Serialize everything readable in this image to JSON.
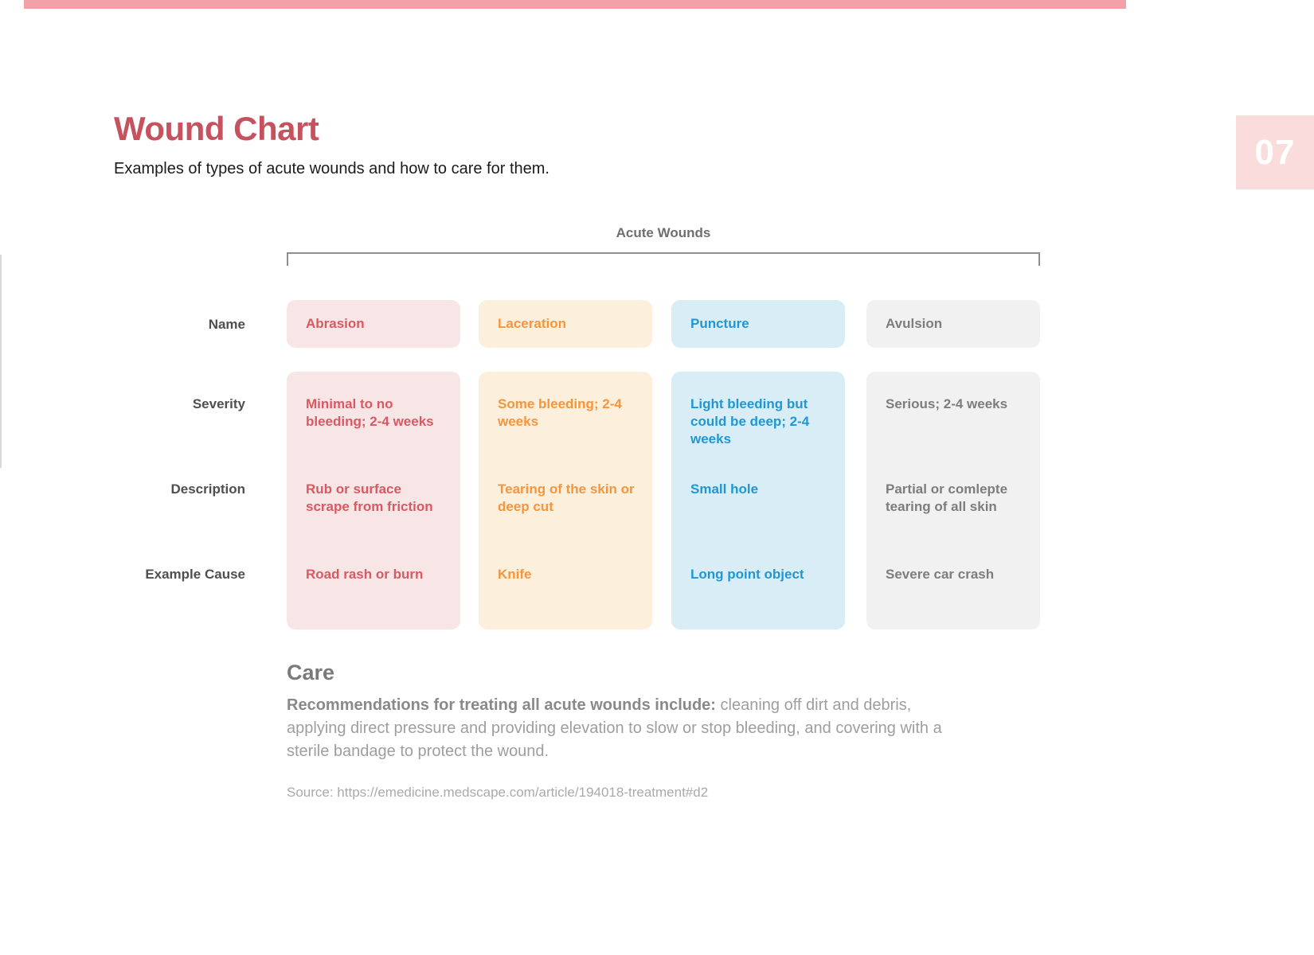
{
  "page": {
    "title": "Wound Chart",
    "subtitle": "Examples of types of acute wounds and how to care for them.",
    "page_number": "07"
  },
  "table": {
    "group_label": "Acute Wounds",
    "row_labels": {
      "name": "Name",
      "severity": "Severity",
      "description": "Description",
      "example_cause": "Example Cause"
    },
    "columns": [
      {
        "name": "Abrasion",
        "severity": "Minimal to no bleeding; 2-4 weeks",
        "description": "Rub or surface scrape from friction",
        "example_cause": "Road rash or burn",
        "text_color": "#d95962",
        "bg_color": "#f8e6e6"
      },
      {
        "name": "Laceration",
        "severity": "Some bleeding; 2-4 weeks",
        "description": "Tearing of the skin or deep cut",
        "example_cause": "Knife",
        "text_color": "#f6953c",
        "bg_color": "#fcefdb"
      },
      {
        "name": "Puncture",
        "severity": "Light bleeding but could be deep; 2-4 weeks",
        "description": "Small hole",
        "example_cause": "Long point object",
        "text_color": "#2097d4",
        "bg_color": "#d8edf6"
      },
      {
        "name": "Avulsion",
        "severity": "Serious; 2-4 weeks",
        "description": "Partial or comlepte tearing of all skin",
        "example_cause": "Severe car crash",
        "text_color": "#7d7d7d",
        "bg_color": "#f1f1f1"
      }
    ]
  },
  "care": {
    "heading": "Care",
    "lead": "Recommendations for treating all acute wounds include:",
    "body": " cleaning off dirt and debris, applying direct pressure and providing elevation to slow or stop bleeding, and covering with a sterile bandage to protect the wound.",
    "source": "Source: https://emedicine.medscape.com/article/194018-treatment#d2"
  },
  "colors": {
    "title_red": "#c5525e",
    "top_bar_pink": "#f2a1a8",
    "badge_pink": "#fadcdc",
    "abrasion_text": "#d95962",
    "abrasion_bg": "#f8e6e6",
    "laceration_text": "#f6953c",
    "laceration_bg": "#fcefdb",
    "puncture_text": "#2097d4",
    "puncture_bg": "#d8edf6",
    "avulsion_text": "#7d7d7d",
    "avulsion_bg": "#f1f1f1",
    "label_gray": "#4f4f4f",
    "care_gray": "#9e9e9e"
  },
  "chart_data": {
    "type": "table",
    "title": "Acute Wounds",
    "row_headers": [
      "Name",
      "Severity",
      "Description",
      "Example Cause"
    ],
    "columns": [
      "Abrasion",
      "Laceration",
      "Puncture",
      "Avulsion"
    ],
    "rows": [
      [
        "Abrasion",
        "Laceration",
        "Puncture",
        "Avulsion"
      ],
      [
        "Minimal to no bleeding; 2-4 weeks",
        "Some bleeding; 2-4 weeks",
        "Light bleeding but could be deep; 2-4 weeks",
        "Serious; 2-4 weeks"
      ],
      [
        "Rub or surface scrape from friction",
        "Tearing of the skin or deep cut",
        "Small hole",
        "Partial or comlepte tearing of all skin"
      ],
      [
        "Road rash or burn",
        "Knife",
        "Long point object",
        "Severe car crash"
      ]
    ],
    "legend_position": "none",
    "grid": false
  }
}
